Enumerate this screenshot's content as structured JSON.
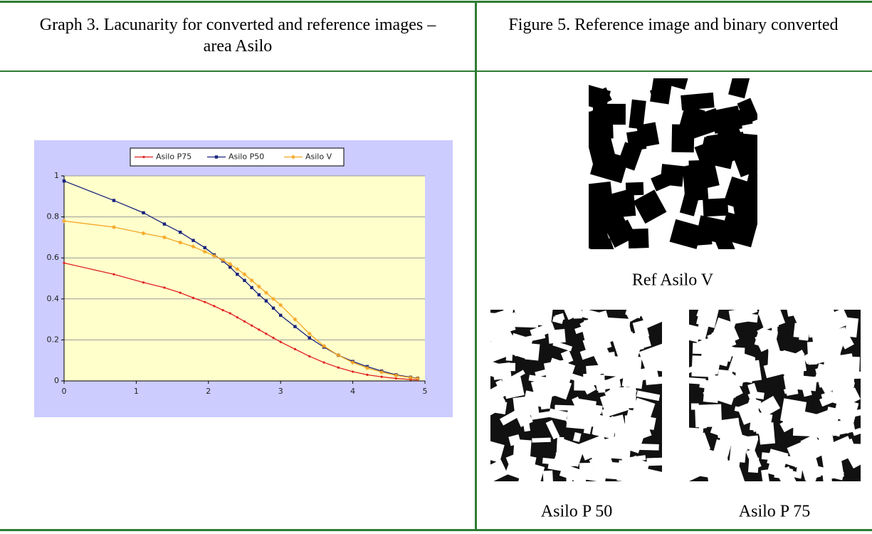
{
  "table": {
    "headers": [
      "Graph 3. Lacunarity for converted and reference images – area Asilo",
      "Figure 5. Reference image and binary converted"
    ]
  },
  "chart_data": {
    "type": "line",
    "x": [
      0,
      0.69,
      1.1,
      1.39,
      1.61,
      1.79,
      1.95,
      2.08,
      2.2,
      2.3,
      2.4,
      2.5,
      2.6,
      2.7,
      2.8,
      2.9,
      3.0,
      3.2,
      3.4,
      3.6,
      3.8,
      4.0,
      4.2,
      4.4,
      4.6,
      4.8,
      4.9
    ],
    "series": [
      {
        "name": "Asilo P75",
        "color": "#e02020",
        "values": [
          0.575,
          0.52,
          0.48,
          0.455,
          0.43,
          0.405,
          0.385,
          0.365,
          0.345,
          0.33,
          0.31,
          0.29,
          0.27,
          0.25,
          0.23,
          0.21,
          0.19,
          0.155,
          0.12,
          0.09,
          0.065,
          0.045,
          0.03,
          0.02,
          0.012,
          0.007,
          0.005
        ]
      },
      {
        "name": "Asilo P50",
        "color": "#1a237e",
        "values": [
          0.975,
          0.88,
          0.82,
          0.765,
          0.725,
          0.685,
          0.65,
          0.615,
          0.585,
          0.555,
          0.52,
          0.49,
          0.455,
          0.42,
          0.39,
          0.355,
          0.32,
          0.265,
          0.21,
          0.165,
          0.125,
          0.095,
          0.07,
          0.048,
          0.03,
          0.018,
          0.013
        ]
      },
      {
        "name": "Asilo V",
        "color": "#f5a623",
        "values": [
          0.78,
          0.75,
          0.72,
          0.7,
          0.675,
          0.655,
          0.63,
          0.61,
          0.59,
          0.57,
          0.545,
          0.52,
          0.49,
          0.46,
          0.43,
          0.4,
          0.37,
          0.3,
          0.23,
          0.17,
          0.125,
          0.09,
          0.063,
          0.043,
          0.027,
          0.016,
          0.012
        ]
      }
    ],
    "xlim": [
      0,
      5
    ],
    "xticks": [
      0,
      1,
      2,
      3,
      4,
      5
    ],
    "ylim": [
      0,
      1
    ],
    "yticks": [
      0,
      0.2,
      0.4,
      0.6,
      0.8,
      1
    ],
    "grid": true,
    "legend": "top"
  },
  "figure": {
    "captions": [
      "Ref Asilo V",
      "Asilo P 50",
      "Asilo P 75"
    ]
  }
}
